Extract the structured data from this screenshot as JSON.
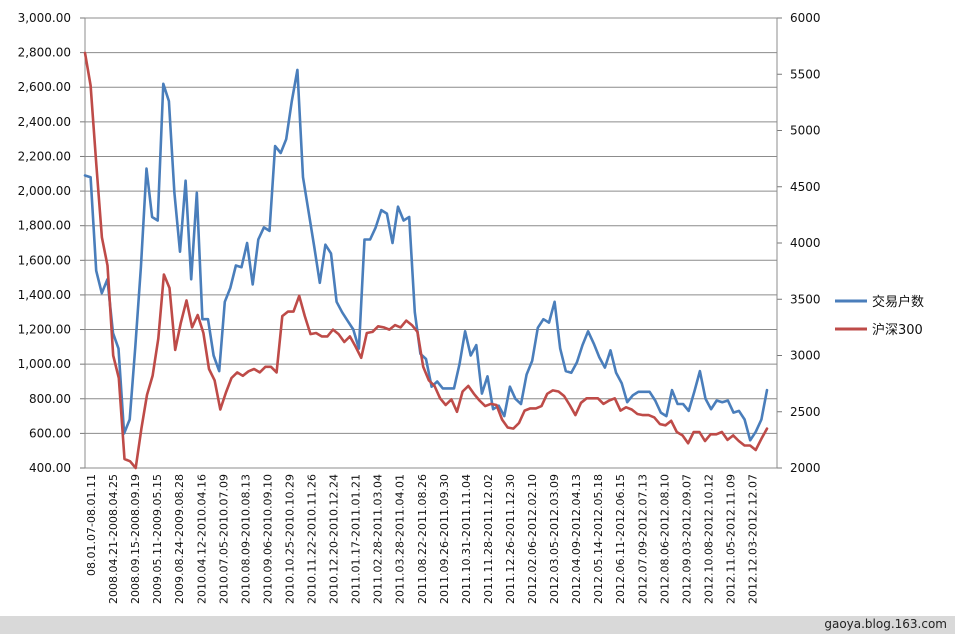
{
  "watermark": "gaoya.blog.163.com",
  "chart_data": {
    "type": "line",
    "title": "",
    "xlabel": "",
    "ylabel": "",
    "y_left": {
      "range": [
        400,
        3000
      ],
      "ticks": [
        "400.00",
        "600.00",
        "800.00",
        "1,000.00",
        "1,200.00",
        "1,400.00",
        "1,600.00",
        "1,800.00",
        "2,000.00",
        "2,200.00",
        "2,400.00",
        "2,600.00",
        "2,800.00",
        "3,000.00"
      ]
    },
    "y_right": {
      "range": [
        2000,
        6000
      ],
      "ticks": [
        "2000",
        "2500",
        "3000",
        "3500",
        "4000",
        "4500",
        "5000",
        "5500",
        "6000"
      ]
    },
    "grid": true,
    "legend_position": "right",
    "x_tick_labels": [
      "08.01.07-08.01.11",
      "2008.04.21-2008.04.25",
      "2008.09.15-2008.09.19",
      "2009.05.11-2009.05.15",
      "2009.08.24-2009.08.28",
      "2010.04.12-2010.04.16",
      "2010.07.05-2010.07.09",
      "2010.08.09-2010.08.13",
      "2010.09.06-2010.09.10",
      "2010.10.25-2010.10.29",
      "2010.11.22-2010.11.26",
      "2010.12.20-2010.12.24",
      "2011.01.17-2011.01.21",
      "2011.02.28-2011.03.04",
      "2011.03.28-2011.04.01",
      "2011.08.22-2011.08.26",
      "2011.09.26-2011.09.30",
      "2011.10.31-2011.11.04",
      "2011.11.28-2011.12.02",
      "2011.12.26-2011.12.30",
      "2012.02.06-2012.02.10",
      "2012.03.05-2012.03.09",
      "2012.04.09-2012.04.13",
      "2012.05.14-2012.05.18",
      "2012.06.11-2012.06.15",
      "2012.07.09-2012.07.13",
      "2012.08.06-2012.08.10",
      "2012.09.03-2012.09.07",
      "2012.10.08-2012.10.12",
      "2012.11.05-2012.11.09",
      "2012.12.03-2012.12.07"
    ],
    "series": [
      {
        "name": "交易户数",
        "axis": "left",
        "color": "#4a7ebb",
        "values": [
          2090,
          2080,
          1540,
          1410,
          1490,
          1180,
          1090,
          600,
          680,
          1100,
          1560,
          2130,
          1850,
          1830,
          2620,
          2520,
          1990,
          1650,
          2060,
          1490,
          1990,
          1260,
          1260,
          1050,
          960,
          1360,
          1440,
          1570,
          1560,
          1700,
          1460,
          1720,
          1790,
          1770,
          2260,
          2220,
          2300,
          2520,
          2700,
          2080,
          1880,
          1680,
          1470,
          1690,
          1640,
          1360,
          1300,
          1250,
          1200,
          1090,
          1720,
          1720,
          1790,
          1890,
          1870,
          1700,
          1910,
          1830,
          1850,
          1300,
          1060,
          1030,
          870,
          900,
          860,
          860,
          860,
          1000,
          1190,
          1050,
          1110,
          830,
          930,
          740,
          760,
          700,
          870,
          800,
          770,
          940,
          1020,
          1210,
          1260,
          1240,
          1360,
          1090,
          960,
          950,
          1010,
          1110,
          1190,
          1120,
          1040,
          980,
          1080,
          950,
          890,
          780,
          820,
          840,
          840,
          840,
          790,
          720,
          700,
          850,
          770,
          770,
          730,
          840,
          960,
          800,
          740,
          790,
          780,
          790,
          720,
          730,
          680,
          560,
          610,
          680,
          850
        ]
      },
      {
        "name": "沪深300",
        "axis": "right",
        "color": "#be4b48",
        "values": [
          5690,
          5400,
          4700,
          4050,
          3800,
          3000,
          2800,
          2080,
          2060,
          2000,
          2350,
          2650,
          2820,
          3150,
          3720,
          3600,
          3050,
          3290,
          3490,
          3250,
          3360,
          3200,
          2880,
          2780,
          2520,
          2670,
          2800,
          2850,
          2820,
          2860,
          2880,
          2850,
          2900,
          2900,
          2850,
          3350,
          3390,
          3390,
          3530,
          3350,
          3190,
          3200,
          3170,
          3170,
          3230,
          3190,
          3120,
          3170,
          3080,
          2980,
          3200,
          3210,
          3260,
          3250,
          3230,
          3270,
          3250,
          3310,
          3270,
          3210,
          2900,
          2780,
          2730,
          2620,
          2560,
          2610,
          2500,
          2680,
          2730,
          2660,
          2600,
          2550,
          2570,
          2560,
          2430,
          2360,
          2350,
          2400,
          2510,
          2530,
          2530,
          2550,
          2660,
          2690,
          2680,
          2640,
          2560,
          2470,
          2580,
          2620,
          2620,
          2620,
          2570,
          2600,
          2620,
          2510,
          2540,
          2520,
          2480,
          2470,
          2470,
          2450,
          2390,
          2380,
          2420,
          2320,
          2290,
          2220,
          2320,
          2320,
          2240,
          2300,
          2300,
          2320,
          2250,
          2290,
          2240,
          2200,
          2200,
          2160,
          2260,
          2350
        ]
      }
    ]
  }
}
